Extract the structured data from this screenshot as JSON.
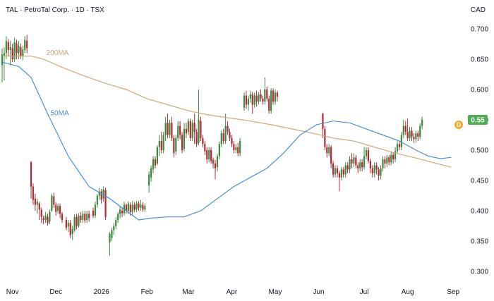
{
  "header": {
    "title": "TAL · PetroTal Corp. · 1D · TSX",
    "currency": "CAD"
  },
  "colors": {
    "up": "#26a69a",
    "up_fill": "#3c8a3e",
    "down": "#b22833",
    "ma50": "#4a8fd8",
    "ma200": "#d2a87a",
    "badge": "#4caf50",
    "d_badge": "#f5a623",
    "axis_text": "#131722"
  },
  "chart_data": {
    "type": "candlestick",
    "y_ticks": [
      "0.700",
      "0.650",
      "0.600",
      "0.550",
      "0.500",
      "0.450",
      "0.400",
      "0.350",
      "0.300"
    ],
    "ylim": [
      0.285,
      0.715
    ],
    "x_ticks": [
      {
        "label": "Nov",
        "t": 5
      },
      {
        "label": "Dec",
        "t": 26
      },
      {
        "label": "2026",
        "t": 48
      },
      {
        "label": "Feb",
        "t": 70
      },
      {
        "label": "Mar",
        "t": 90
      },
      {
        "label": "Apr",
        "t": 111
      },
      {
        "label": "May",
        "t": 132
      },
      {
        "label": "Jun",
        "t": 153
      },
      {
        "label": "Jul",
        "t": 175
      },
      {
        "label": "Aug",
        "t": 196
      },
      {
        "label": "Sep",
        "t": 218
      }
    ],
    "t_range": [
      0,
      220
    ],
    "last_price": "0.55",
    "last_value": 0.55,
    "dividend_marker": "D",
    "ma50": {
      "name": "50MA",
      "points": [
        [
          0,
          0.645
        ],
        [
          8,
          0.638
        ],
        [
          14,
          0.62
        ],
        [
          22,
          0.56
        ],
        [
          32,
          0.49
        ],
        [
          42,
          0.44
        ],
        [
          52,
          0.42
        ],
        [
          60,
          0.4
        ],
        [
          66,
          0.385
        ],
        [
          72,
          0.388
        ],
        [
          80,
          0.39
        ],
        [
          88,
          0.39
        ],
        [
          96,
          0.4
        ],
        [
          104,
          0.42
        ],
        [
          112,
          0.44
        ],
        [
          120,
          0.455
        ],
        [
          128,
          0.47
        ],
        [
          136,
          0.495
        ],
        [
          144,
          0.525
        ],
        [
          152,
          0.542
        ],
        [
          160,
          0.548
        ],
        [
          168,
          0.545
        ],
        [
          176,
          0.535
        ],
        [
          184,
          0.525
        ],
        [
          192,
          0.515
        ],
        [
          200,
          0.5
        ],
        [
          206,
          0.49
        ],
        [
          212,
          0.486
        ],
        [
          217,
          0.488
        ]
      ]
    },
    "ma200": {
      "name": "200MA",
      "points": [
        [
          0,
          0.655
        ],
        [
          14,
          0.655
        ],
        [
          20,
          0.65
        ],
        [
          30,
          0.635
        ],
        [
          40,
          0.622
        ],
        [
          50,
          0.61
        ],
        [
          60,
          0.6
        ],
        [
          70,
          0.585
        ],
        [
          80,
          0.575
        ],
        [
          90,
          0.565
        ],
        [
          100,
          0.558
        ],
        [
          110,
          0.553
        ],
        [
          120,
          0.548
        ],
        [
          130,
          0.542
        ],
        [
          140,
          0.535
        ],
        [
          150,
          0.528
        ],
        [
          160,
          0.52
        ],
        [
          170,
          0.515
        ],
        [
          180,
          0.505
        ],
        [
          190,
          0.495
        ],
        [
          200,
          0.487
        ],
        [
          210,
          0.478
        ],
        [
          217,
          0.472
        ]
      ]
    },
    "candles": [
      [
        0,
        0.64,
        0.658,
        0.612,
        0.668
      ],
      [
        1,
        0.655,
        0.66,
        0.615,
        0.67
      ],
      [
        2,
        0.66,
        0.68,
        0.65,
        0.688
      ],
      [
        3,
        0.678,
        0.665,
        0.655,
        0.683
      ],
      [
        4,
        0.665,
        0.67,
        0.64,
        0.68
      ],
      [
        5,
        0.668,
        0.65,
        0.645,
        0.675
      ],
      [
        6,
        0.65,
        0.678,
        0.645,
        0.685
      ],
      [
        7,
        0.676,
        0.66,
        0.65,
        0.682
      ],
      [
        8,
        0.66,
        0.672,
        0.65,
        0.68
      ],
      [
        9,
        0.67,
        0.655,
        0.65,
        0.676
      ],
      [
        10,
        0.655,
        0.666,
        0.648,
        0.672
      ],
      [
        11,
        0.665,
        0.682,
        0.66,
        0.688
      ],
      [
        12,
        0.68,
        0.668,
        0.66,
        0.69
      ],
      [
        14,
        0.48,
        0.44,
        0.42,
        0.482
      ],
      [
        15,
        0.44,
        0.418,
        0.41,
        0.445
      ],
      [
        16,
        0.42,
        0.41,
        0.4,
        0.428
      ],
      [
        17,
        0.41,
        0.415,
        0.395,
        0.42
      ],
      [
        18,
        0.412,
        0.402,
        0.385,
        0.415
      ],
      [
        19,
        0.402,
        0.39,
        0.38,
        0.405
      ],
      [
        20,
        0.388,
        0.385,
        0.378,
        0.392
      ],
      [
        21,
        0.385,
        0.392,
        0.38,
        0.398
      ],
      [
        22,
        0.39,
        0.38,
        0.376,
        0.395
      ],
      [
        23,
        0.382,
        0.398,
        0.378,
        0.402
      ],
      [
        24,
        0.4,
        0.425,
        0.398,
        0.428
      ],
      [
        25,
        0.424,
        0.41,
        0.405,
        0.43
      ],
      [
        26,
        0.41,
        0.398,
        0.392,
        0.414
      ],
      [
        27,
        0.4,
        0.408,
        0.395,
        0.412
      ],
      [
        28,
        0.408,
        0.395,
        0.388,
        0.412
      ],
      [
        29,
        0.395,
        0.385,
        0.38,
        0.398
      ],
      [
        31,
        0.385,
        0.372,
        0.368,
        0.39
      ],
      [
        32,
        0.374,
        0.38,
        0.365,
        0.385
      ],
      [
        33,
        0.38,
        0.36,
        0.355,
        0.385
      ],
      [
        34,
        0.362,
        0.37,
        0.352,
        0.375
      ],
      [
        35,
        0.368,
        0.39,
        0.365,
        0.394
      ],
      [
        36,
        0.39,
        0.375,
        0.37,
        0.395
      ],
      [
        37,
        0.375,
        0.392,
        0.372,
        0.396
      ],
      [
        38,
        0.392,
        0.385,
        0.38,
        0.398
      ],
      [
        39,
        0.385,
        0.395,
        0.38,
        0.4
      ],
      [
        40,
        0.395,
        0.384,
        0.38,
        0.4
      ],
      [
        41,
        0.385,
        0.395,
        0.38,
        0.4
      ],
      [
        42,
        0.395,
        0.388,
        0.382,
        0.4
      ],
      [
        44,
        0.4,
        0.392,
        0.388,
        0.405
      ],
      [
        45,
        0.392,
        0.41,
        0.388,
        0.415
      ],
      [
        46,
        0.41,
        0.425,
        0.405,
        0.428
      ],
      [
        47,
        0.425,
        0.432,
        0.418,
        0.438
      ],
      [
        48,
        0.432,
        0.418,
        0.412,
        0.436
      ],
      [
        49,
        0.42,
        0.435,
        0.415,
        0.44
      ],
      [
        50,
        0.434,
        0.39,
        0.385,
        0.438
      ],
      [
        52,
        0.348,
        0.362,
        0.326,
        0.365
      ],
      [
        53,
        0.355,
        0.368,
        0.35,
        0.372
      ],
      [
        54,
        0.368,
        0.375,
        0.36,
        0.38
      ],
      [
        55,
        0.375,
        0.385,
        0.37,
        0.39
      ],
      [
        56,
        0.385,
        0.395,
        0.38,
        0.398
      ],
      [
        57,
        0.395,
        0.402,
        0.388,
        0.408
      ],
      [
        58,
        0.4,
        0.396,
        0.39,
        0.405
      ],
      [
        59,
        0.396,
        0.41,
        0.392,
        0.415
      ],
      [
        60,
        0.41,
        0.4,
        0.395,
        0.412
      ],
      [
        61,
        0.4,
        0.412,
        0.395,
        0.416
      ],
      [
        62,
        0.41,
        0.398,
        0.392,
        0.414
      ],
      [
        63,
        0.398,
        0.41,
        0.392,
        0.416
      ],
      [
        64,
        0.41,
        0.402,
        0.398,
        0.414
      ],
      [
        65,
        0.402,
        0.412,
        0.398,
        0.416
      ],
      [
        66,
        0.412,
        0.405,
        0.4,
        0.416
      ],
      [
        67,
        0.405,
        0.41,
        0.4,
        0.418
      ],
      [
        68,
        0.41,
        0.402,
        0.398,
        0.414
      ],
      [
        69,
        0.402,
        0.408,
        0.398,
        0.412
      ],
      [
        71,
        0.442,
        0.46,
        0.43,
        0.465
      ],
      [
        72,
        0.455,
        0.47,
        0.448,
        0.475
      ],
      [
        73,
        0.468,
        0.485,
        0.462,
        0.49
      ],
      [
        74,
        0.485,
        0.475,
        0.47,
        0.49
      ],
      [
        75,
        0.478,
        0.505,
        0.475,
        0.508
      ],
      [
        76,
        0.505,
        0.515,
        0.49,
        0.525
      ],
      [
        77,
        0.515,
        0.5,
        0.495,
        0.53
      ],
      [
        78,
        0.5,
        0.525,
        0.495,
        0.53
      ],
      [
        79,
        0.525,
        0.545,
        0.515,
        0.555
      ],
      [
        80,
        0.545,
        0.525,
        0.52,
        0.56
      ],
      [
        81,
        0.525,
        0.545,
        0.52,
        0.55
      ],
      [
        82,
        0.545,
        0.52,
        0.515,
        0.555
      ],
      [
        83,
        0.52,
        0.495,
        0.488,
        0.525
      ],
      [
        84,
        0.498,
        0.52,
        0.492,
        0.525
      ],
      [
        85,
        0.52,
        0.54,
        0.515,
        0.548
      ],
      [
        86,
        0.54,
        0.525,
        0.518,
        0.548
      ],
      [
        87,
        0.525,
        0.5,
        0.495,
        0.53
      ],
      [
        88,
        0.502,
        0.535,
        0.498,
        0.545
      ],
      [
        89,
        0.535,
        0.528,
        0.52,
        0.545
      ],
      [
        90,
        0.53,
        0.548,
        0.525,
        0.552
      ],
      [
        91,
        0.548,
        0.52,
        0.515,
        0.552
      ],
      [
        92,
        0.52,
        0.545,
        0.515,
        0.55
      ],
      [
        93,
        0.545,
        0.53,
        0.51,
        0.56
      ],
      [
        94,
        0.53,
        0.51,
        0.505,
        0.535
      ],
      [
        95,
        0.512,
        0.55,
        0.508,
        0.6
      ],
      [
        96,
        0.548,
        0.52,
        0.515,
        0.555
      ],
      [
        97,
        0.52,
        0.51,
        0.505,
        0.525
      ],
      [
        98,
        0.51,
        0.498,
        0.492,
        0.515
      ],
      [
        99,
        0.5,
        0.485,
        0.478,
        0.505
      ],
      [
        100,
        0.485,
        0.5,
        0.48,
        0.505
      ],
      [
        101,
        0.5,
        0.482,
        0.478,
        0.505
      ],
      [
        102,
        0.484,
        0.478,
        0.47,
        0.488
      ],
      [
        103,
        0.478,
        0.47,
        0.452,
        0.484
      ],
      [
        104,
        0.472,
        0.49,
        0.465,
        0.494
      ],
      [
        105,
        0.49,
        0.51,
        0.485,
        0.514
      ],
      [
        106,
        0.51,
        0.528,
        0.505,
        0.532
      ],
      [
        107,
        0.528,
        0.515,
        0.51,
        0.535
      ],
      [
        108,
        0.515,
        0.54,
        0.51,
        0.56
      ],
      [
        109,
        0.54,
        0.53,
        0.525,
        0.548
      ],
      [
        110,
        0.53,
        0.52,
        0.515,
        0.535
      ],
      [
        111,
        0.52,
        0.51,
        0.505,
        0.525
      ],
      [
        112,
        0.51,
        0.5,
        0.495,
        0.515
      ],
      [
        113,
        0.5,
        0.505,
        0.495,
        0.51
      ],
      [
        114,
        0.505,
        0.495,
        0.49,
        0.512
      ],
      [
        115,
        0.495,
        0.515,
        0.49,
        0.52
      ],
      [
        117,
        0.57,
        0.59,
        0.565,
        0.595
      ],
      [
        118,
        0.59,
        0.575,
        0.568,
        0.598
      ],
      [
        119,
        0.575,
        0.585,
        0.565,
        0.59
      ],
      [
        120,
        0.585,
        0.592,
        0.578,
        0.598
      ],
      [
        121,
        0.592,
        0.575,
        0.56,
        0.596
      ],
      [
        122,
        0.575,
        0.59,
        0.57,
        0.595
      ],
      [
        123,
        0.59,
        0.58,
        0.572,
        0.598
      ],
      [
        124,
        0.58,
        0.592,
        0.575,
        0.596
      ],
      [
        125,
        0.592,
        0.585,
        0.58,
        0.6
      ],
      [
        126,
        0.585,
        0.58,
        0.575,
        0.59
      ],
      [
        127,
        0.58,
        0.6,
        0.575,
        0.62
      ],
      [
        128,
        0.6,
        0.585,
        0.58,
        0.605
      ],
      [
        129,
        0.585,
        0.565,
        0.56,
        0.59
      ],
      [
        130,
        0.565,
        0.598,
        0.56,
        0.602
      ],
      [
        131,
        0.598,
        0.58,
        0.575,
        0.602
      ],
      [
        132,
        0.58,
        0.595,
        0.575,
        0.6
      ],
      [
        133,
        0.595,
        0.588,
        0.58,
        0.598
      ],
      [
        155,
        0.56,
        0.535,
        0.52,
        0.562
      ],
      [
        156,
        0.535,
        0.505,
        0.5,
        0.54
      ],
      [
        157,
        0.505,
        0.495,
        0.488,
        0.51
      ],
      [
        158,
        0.495,
        0.505,
        0.49,
        0.51
      ],
      [
        159,
        0.505,
        0.478,
        0.47,
        0.508
      ],
      [
        160,
        0.478,
        0.46,
        0.455,
        0.482
      ],
      [
        161,
        0.46,
        0.47,
        0.455,
        0.475
      ],
      [
        162,
        0.47,
        0.462,
        0.455,
        0.475
      ],
      [
        163,
        0.462,
        0.455,
        0.432,
        0.466
      ],
      [
        164,
        0.455,
        0.468,
        0.45,
        0.472
      ],
      [
        165,
        0.468,
        0.46,
        0.455,
        0.472
      ],
      [
        166,
        0.46,
        0.475,
        0.455,
        0.48
      ],
      [
        167,
        0.475,
        0.468,
        0.462,
        0.48
      ],
      [
        168,
        0.468,
        0.485,
        0.462,
        0.49
      ],
      [
        169,
        0.485,
        0.478,
        0.47,
        0.495
      ],
      [
        170,
        0.478,
        0.488,
        0.472,
        0.495
      ],
      [
        171,
        0.488,
        0.475,
        0.47,
        0.492
      ],
      [
        172,
        0.475,
        0.47,
        0.462,
        0.48
      ],
      [
        173,
        0.47,
        0.48,
        0.465,
        0.485
      ],
      [
        174,
        0.48,
        0.472,
        0.465,
        0.485
      ],
      [
        175,
        0.472,
        0.49,
        0.468,
        0.505
      ],
      [
        176,
        0.49,
        0.5,
        0.485,
        0.505
      ],
      [
        177,
        0.5,
        0.482,
        0.478,
        0.505
      ],
      [
        178,
        0.482,
        0.47,
        0.462,
        0.486
      ],
      [
        179,
        0.47,
        0.462,
        0.455,
        0.475
      ],
      [
        180,
        0.462,
        0.475,
        0.455,
        0.48
      ],
      [
        181,
        0.475,
        0.468,
        0.46,
        0.48
      ],
      [
        182,
        0.468,
        0.458,
        0.45,
        0.472
      ],
      [
        183,
        0.458,
        0.47,
        0.452,
        0.475
      ],
      [
        184,
        0.47,
        0.485,
        0.465,
        0.49
      ],
      [
        185,
        0.485,
        0.478,
        0.47,
        0.49
      ],
      [
        186,
        0.478,
        0.488,
        0.472,
        0.492
      ],
      [
        187,
        0.488,
        0.48,
        0.475,
        0.492
      ],
      [
        188,
        0.48,
        0.492,
        0.475,
        0.498
      ],
      [
        189,
        0.492,
        0.485,
        0.478,
        0.496
      ],
      [
        190,
        0.485,
        0.498,
        0.48,
        0.505
      ],
      [
        191,
        0.498,
        0.51,
        0.495,
        0.515
      ],
      [
        192,
        0.51,
        0.505,
        0.5,
        0.515
      ],
      [
        193,
        0.505,
        0.525,
        0.5,
        0.53
      ],
      [
        194,
        0.525,
        0.54,
        0.52,
        0.55
      ],
      [
        195,
        0.54,
        0.53,
        0.525,
        0.548
      ],
      [
        196,
        0.53,
        0.52,
        0.515,
        0.552
      ],
      [
        197,
        0.52,
        0.532,
        0.515,
        0.538
      ],
      [
        198,
        0.532,
        0.522,
        0.515,
        0.538
      ],
      [
        199,
        0.522,
        0.518,
        0.512,
        0.528
      ],
      [
        200,
        0.518,
        0.528,
        0.512,
        0.532
      ],
      [
        201,
        0.528,
        0.522,
        0.515,
        0.532
      ],
      [
        202,
        0.522,
        0.54,
        0.518,
        0.544
      ],
      [
        203,
        0.54,
        0.55,
        0.535,
        0.555
      ]
    ]
  }
}
